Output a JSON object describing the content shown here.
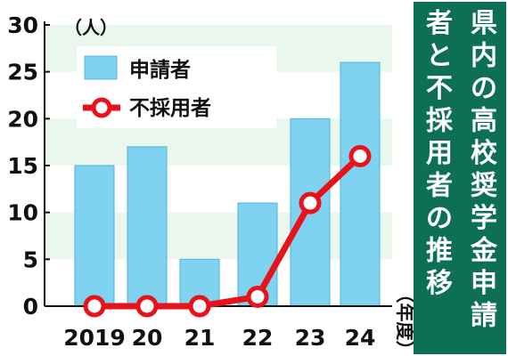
{
  "chart_data": {
    "type": "bar+line",
    "title": "県内の高校奨学金申請者と不採用者の推移",
    "title_columns": [
      "県内の高校奨学金申請",
      "者と不採用者の推移"
    ],
    "categories": [
      "2019",
      "20",
      "21",
      "22",
      "23",
      "24"
    ],
    "y_unit": "（人）",
    "x_unit": "（年度）",
    "ylim": [
      0,
      30
    ],
    "y_ticks": [
      "0",
      "5",
      "10",
      "15",
      "20",
      "25",
      "30"
    ],
    "grid": "alternating horizontal bands",
    "legend_position": "top-left",
    "series": [
      {
        "name": "申請者",
        "kind": "bar",
        "color": "#7fd3f0",
        "values": [
          15,
          17,
          5,
          11,
          20,
          26
        ]
      },
      {
        "name": "不採用者",
        "kind": "line",
        "color": "#e8121a",
        "values": [
          0,
          0,
          0,
          1,
          11,
          16
        ]
      }
    ]
  },
  "colors": {
    "band": "#eaf7ec",
    "title_bg": "#0d6f54",
    "axis": "#111111"
  }
}
